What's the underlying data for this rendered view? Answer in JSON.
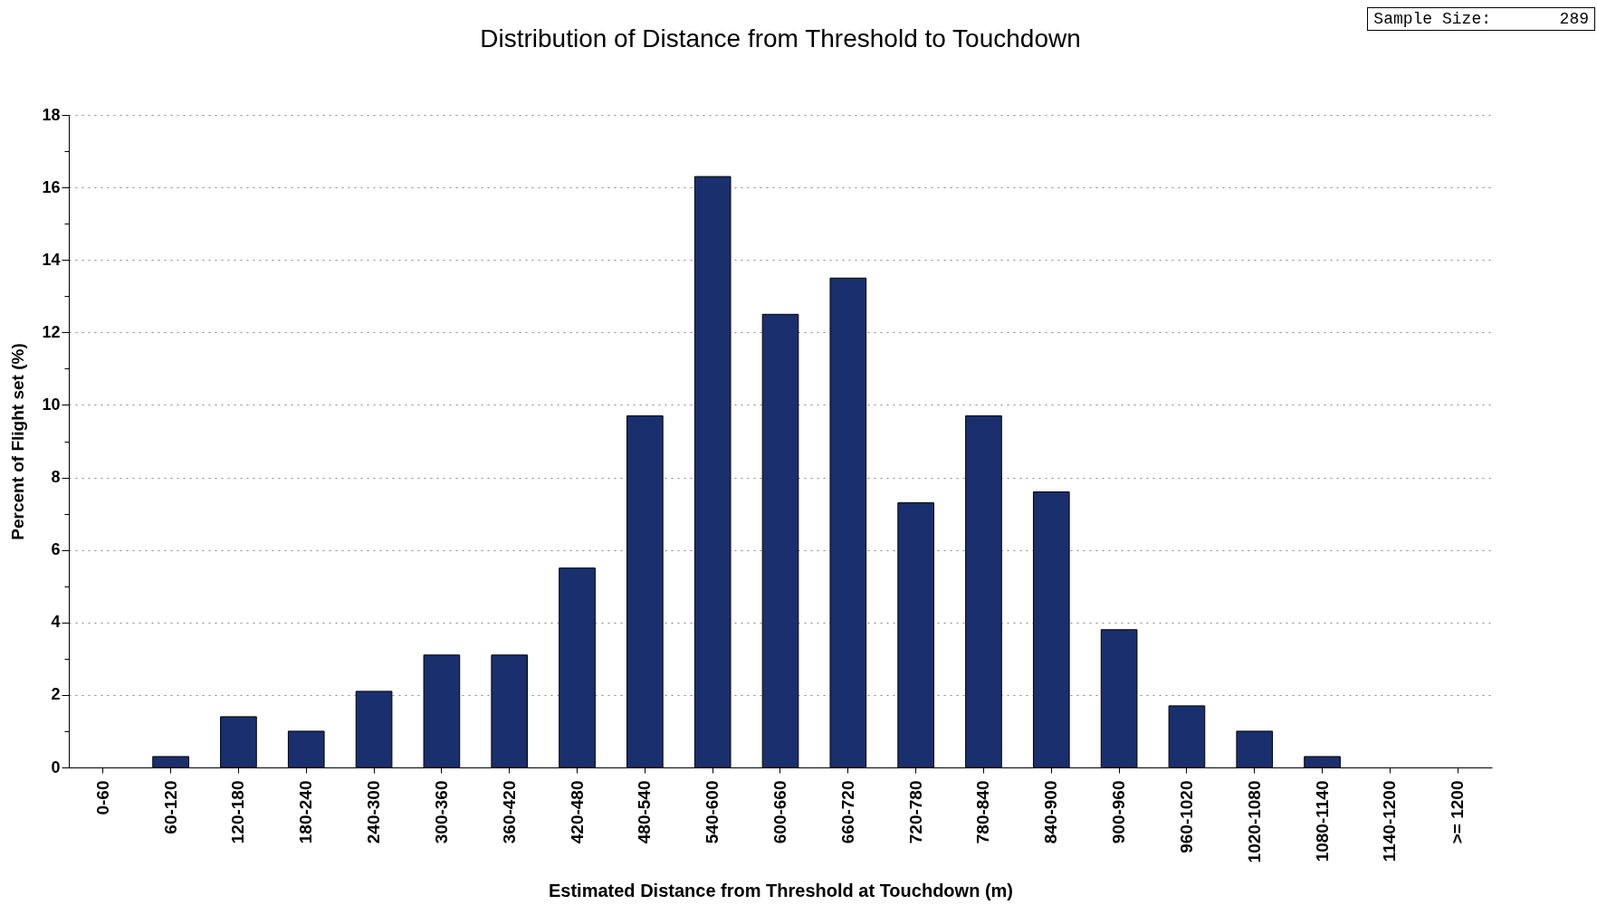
{
  "chart_data": {
    "type": "bar",
    "title": "Distribution of Distance from Threshold to Touchdown",
    "xlabel": "Estimated Distance from Threshold at Touchdown (m)",
    "ylabel": "Percent of Flight set (%)",
    "categories": [
      "0-60",
      "60-120",
      "120-180",
      "180-240",
      "240-300",
      "300-360",
      "360-420",
      "420-480",
      "480-540",
      "540-600",
      "600-660",
      "660-720",
      "720-780",
      "780-840",
      "840-900",
      "900-960",
      "960-1020",
      "1020-1080",
      "1080-1140",
      "1140-1200",
      ">= 1200"
    ],
    "values": [
      0,
      0.3,
      1.4,
      1.0,
      2.1,
      3.1,
      3.1,
      5.5,
      9.7,
      16.3,
      12.5,
      13.5,
      7.3,
      9.7,
      7.6,
      3.8,
      1.7,
      1.0,
      0.3,
      0,
      0
    ],
    "color": "#1a2f6e",
    "ylim": [
      0,
      18
    ],
    "yticks": [
      0,
      {
        "value": 1,
        "label": null
      },
      2,
      {
        "value": 3,
        "label": null
      },
      4,
      {
        "value": 5,
        "label": null
      },
      6,
      {
        "value": 7,
        "label": null
      },
      8,
      {
        "value": 9,
        "label": null
      },
      10,
      {
        "value": 11,
        "label": null
      },
      12,
      {
        "value": 13,
        "label": null
      },
      14,
      {
        "value": 15,
        "label": null
      },
      16,
      {
        "value": 17,
        "label": null
      },
      18
    ],
    "grid": "y",
    "annotations": [
      "Sample Size:       289"
    ]
  }
}
